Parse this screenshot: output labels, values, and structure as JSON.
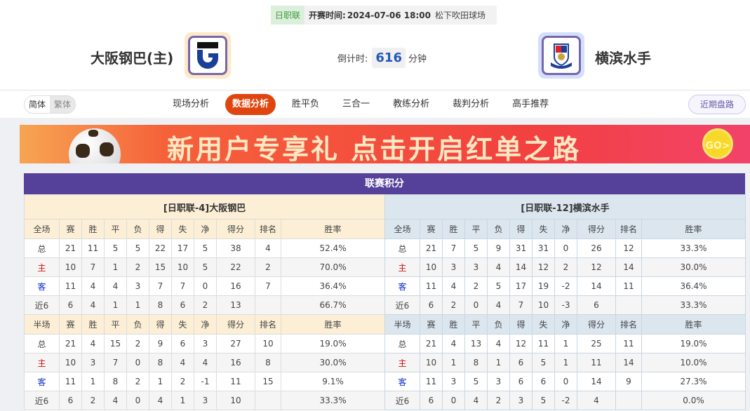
{
  "match": {
    "league": "日职联",
    "time_label": "开赛时间:",
    "datetime": "2024-07-06 18:00",
    "venue": "松下吹田球场",
    "home": {
      "name": "大阪钢巴(主)",
      "logo": "gamba-osaka-logo"
    },
    "away": {
      "name": "横滨水手",
      "logo": "yokohama-marinos-logo"
    },
    "countdown_label": "倒计时:",
    "countdown_value": "616",
    "countdown_unit": "分钟"
  },
  "nav": {
    "lang": [
      "简体",
      "繁体"
    ],
    "tabs": [
      "现场分析",
      "数据分析",
      "胜平负",
      "三合一",
      "教练分析",
      "裁判分析",
      "高手推荐"
    ],
    "active_tab": "数据分析",
    "recent": "近期盘路"
  },
  "banner": {
    "text": "新用户专享礼  点击开启红单之路",
    "go": "GO>"
  },
  "standings": {
    "title": "联赛积分",
    "columns_full": [
      "全场",
      "赛",
      "胜",
      "平",
      "负",
      "得",
      "失",
      "净",
      "得分",
      "排名",
      "胜率"
    ],
    "columns_half": [
      "半场",
      "赛",
      "胜",
      "平",
      "负",
      "得",
      "失",
      "净",
      "得分",
      "排名",
      "胜率"
    ],
    "home": {
      "header": "[日职联-4]大阪钢巴",
      "full": [
        [
          "总",
          "21",
          "11",
          "5",
          "5",
          "22",
          "17",
          "5",
          "38",
          "4",
          "52.4%"
        ],
        [
          "主",
          "10",
          "7",
          "1",
          "2",
          "15",
          "10",
          "5",
          "22",
          "2",
          "70.0%"
        ],
        [
          "客",
          "11",
          "4",
          "4",
          "3",
          "7",
          "7",
          "0",
          "16",
          "7",
          "36.4%"
        ],
        [
          "近6",
          "6",
          "4",
          "1",
          "1",
          "8",
          "6",
          "2",
          "13",
          "",
          "66.7%"
        ]
      ],
      "half": [
        [
          "总",
          "21",
          "4",
          "15",
          "2",
          "9",
          "6",
          "3",
          "27",
          "10",
          "19.0%"
        ],
        [
          "主",
          "10",
          "3",
          "7",
          "0",
          "8",
          "4",
          "4",
          "16",
          "8",
          "30.0%"
        ],
        [
          "客",
          "11",
          "1",
          "8",
          "2",
          "1",
          "2",
          "-1",
          "11",
          "15",
          "9.1%"
        ],
        [
          "近6",
          "6",
          "2",
          "4",
          "0",
          "4",
          "1",
          "3",
          "10",
          "",
          "33.3%"
        ]
      ]
    },
    "away": {
      "header": "[日职联-12]横滨水手",
      "full": [
        [
          "总",
          "21",
          "7",
          "5",
          "9",
          "31",
          "31",
          "0",
          "26",
          "12",
          "33.3%"
        ],
        [
          "主",
          "10",
          "3",
          "3",
          "4",
          "14",
          "12",
          "2",
          "12",
          "14",
          "30.0%"
        ],
        [
          "客",
          "11",
          "4",
          "2",
          "5",
          "17",
          "19",
          "-2",
          "14",
          "11",
          "36.4%"
        ],
        [
          "近6",
          "6",
          "2",
          "0",
          "4",
          "7",
          "10",
          "-3",
          "6",
          "",
          "33.3%"
        ]
      ],
      "half": [
        [
          "总",
          "21",
          "4",
          "13",
          "4",
          "12",
          "11",
          "1",
          "25",
          "11",
          "19.0%"
        ],
        [
          "主",
          "10",
          "1",
          "8",
          "1",
          "6",
          "5",
          "1",
          "11",
          "14",
          "10.0%"
        ],
        [
          "客",
          "11",
          "3",
          "5",
          "3",
          "6",
          "6",
          "0",
          "14",
          "9",
          "27.3%"
        ],
        [
          "近6",
          "6",
          "0",
          "4",
          "2",
          "3",
          "5",
          "-2",
          "4",
          "",
          "0.0%"
        ]
      ]
    }
  },
  "colors": {
    "accent": "#e0450f",
    "title_bar": "#55409a",
    "home_label": "#d01010",
    "away_label": "#1030c8",
    "countdown": "#2358b8"
  }
}
